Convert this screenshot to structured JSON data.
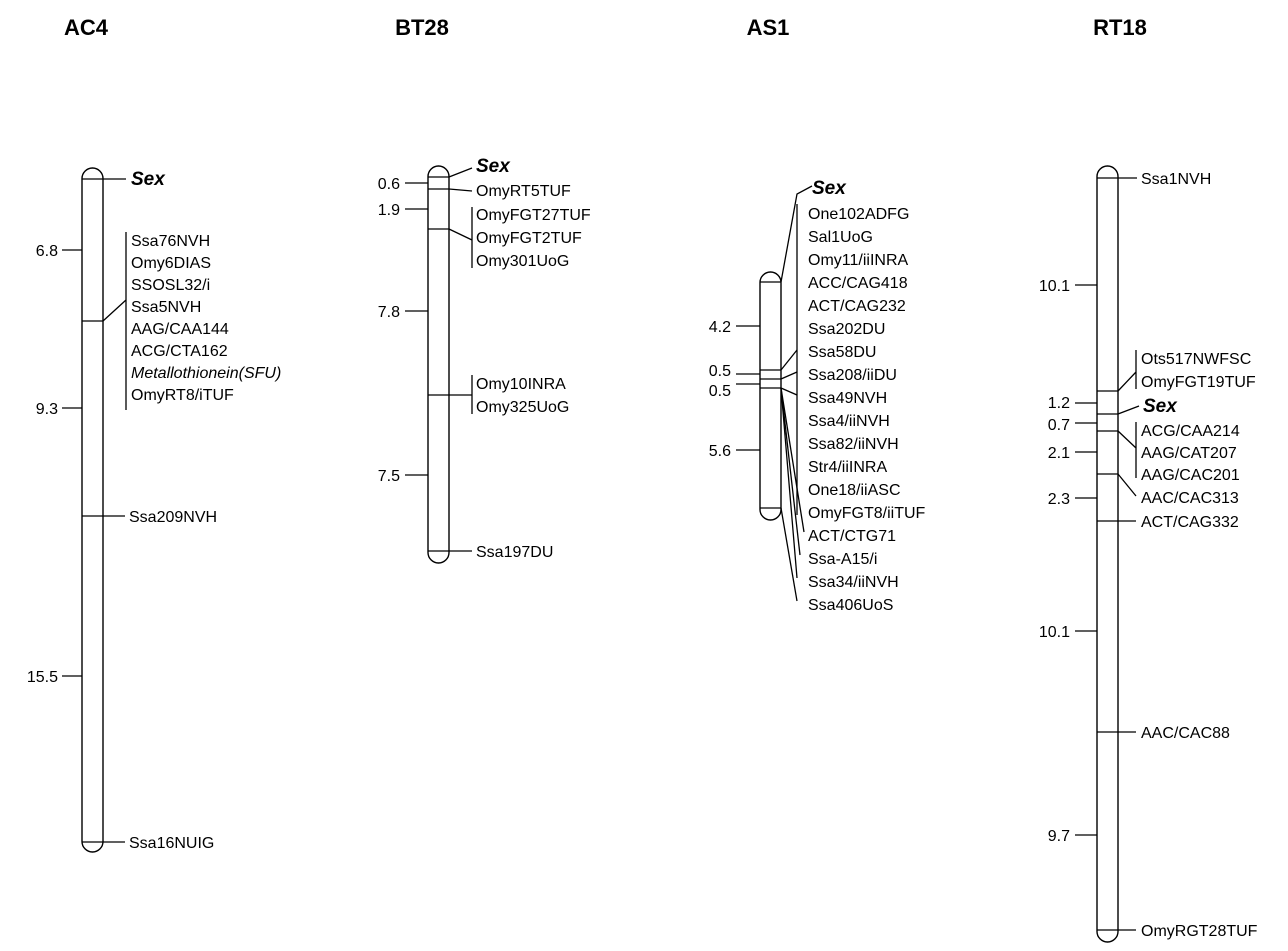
{
  "chromosomes": [
    {
      "id": "ac4",
      "title": "AC4",
      "intervals": [
        "6.8",
        "9.3",
        "15.5"
      ],
      "markers": [
        "Sex",
        "Ssa76NVH",
        "Omy6DIAS",
        "SSOSL32/i",
        "Ssa5NVH",
        "AAG/CAA144",
        "ACG/CTA162",
        "Metallothionein(SFU)",
        "OmyRT8/iTUF",
        "Ssa209NVH",
        "Ssa16NUIG"
      ]
    },
    {
      "id": "bt28",
      "title": "BT28",
      "intervals": [
        "0.6",
        "1.9",
        "7.8",
        "7.5"
      ],
      "markers": [
        "Sex",
        "OmyRT5TUF",
        "OmyFGT27TUF",
        "OmyFGT2TUF",
        "Omy301UoG",
        "Omy10INRA",
        "Omy325UoG",
        "Ssa197DU"
      ]
    },
    {
      "id": "as1",
      "title": "AS1",
      "intervals": [
        "4.2",
        "0.5",
        "0.5",
        "5.6"
      ],
      "markers": [
        "Sex",
        "One102ADFG",
        "Sal1UoG",
        "Omy11/iiINRA",
        "ACC/CAG418",
        "ACT/CAG232",
        "Ssa202DU",
        "Ssa58DU",
        "Ssa208/iiDU",
        "Ssa49NVH",
        "Ssa4/iiNVH",
        "Ssa82/iiNVH",
        "Str4/iiINRA",
        "One18/iiASC",
        "OmyFGT8/iiTUF",
        "ACT/CTG71",
        "Ssa-A15/i",
        "Ssa34/iiNVH",
        "Ssa406UoS"
      ]
    },
    {
      "id": "rt18",
      "title": "RT18",
      "intervals": [
        "10.1",
        "1.2",
        "0.7",
        "2.1",
        "2.3",
        "10.1",
        "9.7"
      ],
      "markers": [
        "Ssa1NVH",
        "Ots517NWFSC",
        "OmyFGT19TUF",
        "Sex",
        "ACG/CAA214",
        "AAG/CAT207",
        "AAG/CAC201",
        "AAC/CAC313",
        "ACT/CAG332",
        "AAC/CAC88",
        "OmyRGT28TUF"
      ]
    }
  ]
}
